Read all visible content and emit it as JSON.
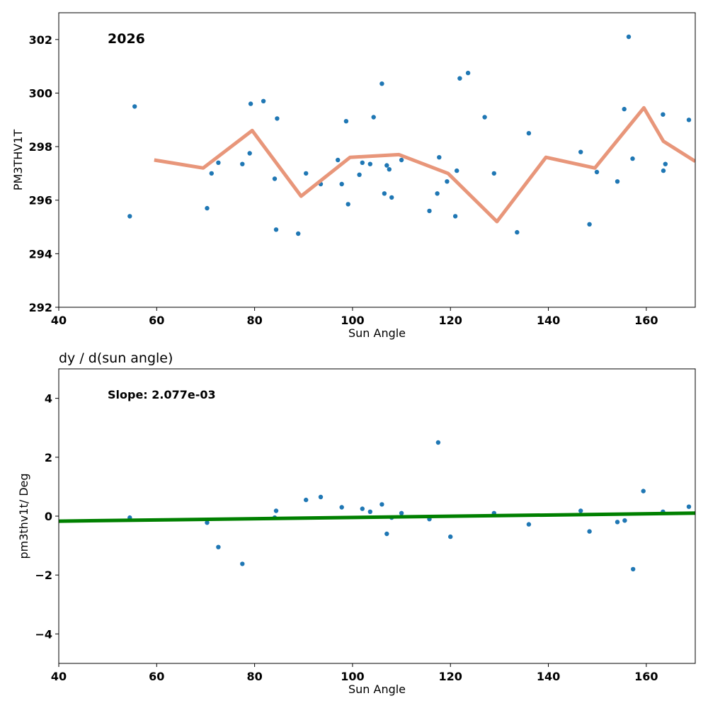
{
  "chart_data": [
    {
      "type": "scatter",
      "panel": "top",
      "title": "",
      "annotation": "2026",
      "xlabel": "Sun Angle",
      "ylabel": "PM3THV1T",
      "xlim": [
        40,
        170
      ],
      "ylim": [
        292,
        303
      ],
      "xticks": [
        40,
        60,
        80,
        100,
        120,
        140,
        160
      ],
      "yticks": [
        292,
        294,
        296,
        298,
        300,
        302
      ],
      "colors": {
        "points": "#1f77b4",
        "line": "#e8967a"
      },
      "series": [
        {
          "name": "observations",
          "kind": "scatter",
          "x": [
            54.5,
            55.5,
            70.3,
            71.2,
            72.6,
            77.5,
            79.0,
            79.2,
            81.8,
            84.1,
            84.4,
            84.6,
            88.9,
            90.5,
            93.5,
            97.0,
            97.8,
            98.7,
            99.1,
            101.4,
            102.0,
            103.6,
            104.3,
            106.0,
            106.5,
            107.0,
            107.5,
            108.0,
            110.0,
            115.7,
            117.3,
            117.7,
            119.3,
            121.0,
            121.3,
            121.9,
            123.6,
            127.0,
            128.9,
            133.6,
            136.0,
            146.6,
            148.4,
            149.9,
            154.1,
            155.5,
            156.4,
            157.2,
            163.4,
            163.5,
            163.9,
            168.7
          ],
          "y": [
            295.4,
            299.5,
            295.7,
            297.0,
            297.4,
            297.35,
            297.75,
            299.6,
            299.7,
            296.8,
            294.9,
            299.05,
            294.75,
            297.0,
            296.6,
            297.5,
            296.6,
            298.95,
            295.85,
            296.95,
            297.4,
            297.35,
            299.1,
            300.35,
            296.25,
            297.3,
            297.15,
            296.1,
            297.5,
            295.6,
            296.25,
            297.6,
            296.7,
            295.4,
            297.1,
            300.55,
            300.75,
            299.1,
            297.0,
            294.8,
            298.5,
            297.8,
            295.1,
            297.05,
            296.7,
            299.4,
            302.1,
            297.55,
            299.2,
            297.1,
            297.35,
            299.0
          ]
        },
        {
          "name": "binned mean",
          "kind": "line",
          "x": [
            59.5,
            69.5,
            79.5,
            89.5,
            99.5,
            109.5,
            119.5,
            129.5,
            139.5,
            149.5,
            159.5,
            163.5,
            170.0
          ],
          "y": [
            297.5,
            297.2,
            298.6,
            296.15,
            297.6,
            297.7,
            297.0,
            295.2,
            297.6,
            297.2,
            299.45,
            298.2,
            297.45
          ]
        }
      ]
    },
    {
      "type": "scatter",
      "panel": "bottom",
      "title": "dy / d(sun angle)",
      "annotation": "Slope: 2.077e-03",
      "xlabel": "Sun Angle",
      "ylabel": "pm3thv1t/ Deg",
      "xlim": [
        40,
        170
      ],
      "ylim": [
        -5,
        5
      ],
      "xticks": [
        40,
        60,
        80,
        100,
        120,
        140,
        160
      ],
      "yticks": [
        -4,
        -2,
        0,
        2,
        4
      ],
      "ytick_labels": [
        "−4",
        "−2",
        "0",
        "2",
        "4"
      ],
      "colors": {
        "points": "#1f77b4",
        "line": "#008000"
      },
      "series": [
        {
          "name": "derivative",
          "kind": "scatter",
          "x": [
            54.5,
            70.3,
            72.6,
            77.5,
            84.1,
            84.4,
            90.5,
            93.5,
            97.8,
            102.0,
            103.6,
            106.0,
            107.0,
            108.0,
            110.0,
            115.7,
            117.5,
            120.0,
            128.9,
            136.0,
            146.6,
            148.4,
            154.1,
            155.6,
            157.3,
            159.4,
            163.4,
            168.7
          ],
          "y": [
            -0.05,
            -0.22,
            -1.05,
            -1.62,
            -0.05,
            0.18,
            0.55,
            0.65,
            0.3,
            0.25,
            0.15,
            0.4,
            -0.6,
            -0.05,
            0.1,
            -0.1,
            2.5,
            -0.7,
            0.1,
            -0.28,
            0.18,
            -0.52,
            -0.2,
            -0.15,
            -1.8,
            0.85,
            0.15,
            0.32
          ]
        },
        {
          "name": "linear fit",
          "kind": "line",
          "x": [
            40,
            170
          ],
          "y": [
            -0.17,
            0.1
          ]
        }
      ]
    }
  ]
}
